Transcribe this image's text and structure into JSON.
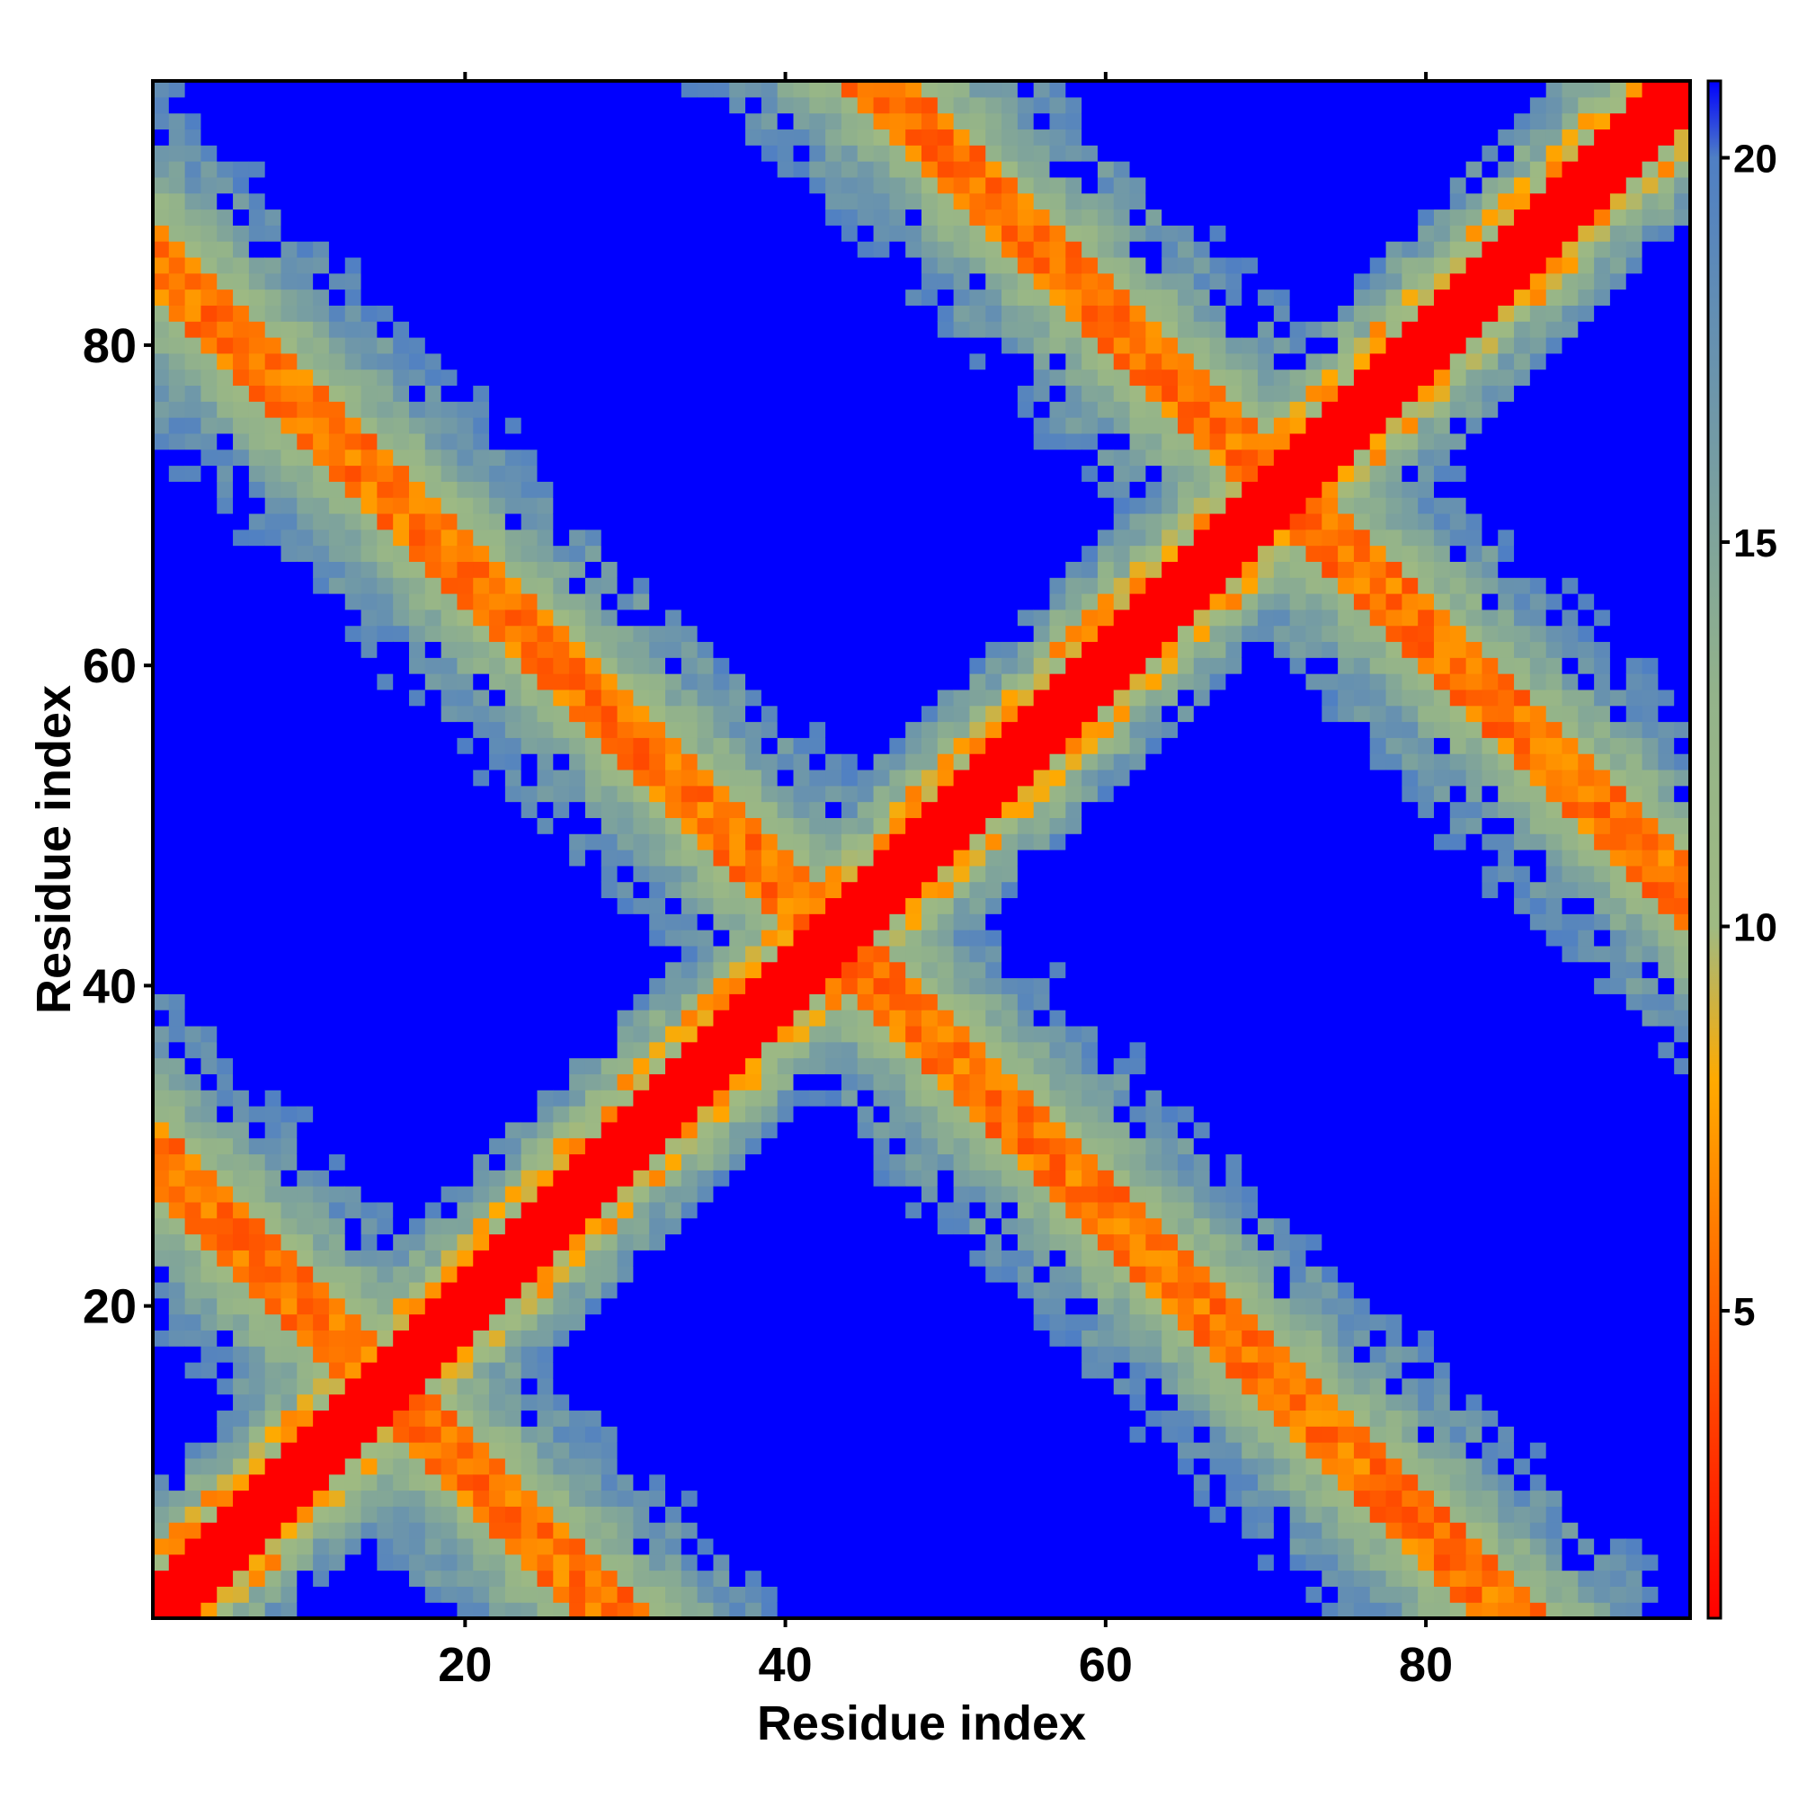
{
  "chart_data": {
    "type": "heatmap",
    "title": "",
    "xlabel": "Residue index",
    "ylabel": "Residue index",
    "x_range": [
      1,
      96
    ],
    "y_range": [
      1,
      96
    ],
    "x_ticks": [
      20,
      40,
      60,
      80
    ],
    "y_ticks": [
      20,
      40,
      60,
      80
    ],
    "colorbar": {
      "range": [
        1,
        21
      ],
      "ticks": [
        5,
        10,
        15,
        20
      ],
      "stops": [
        {
          "value": 1,
          "color": "#ff0000"
        },
        {
          "value": 8,
          "color": "#ffaa00"
        },
        {
          "value": 10,
          "color": "#9fba82"
        },
        {
          "value": 13,
          "color": "#93b38a"
        },
        {
          "value": 20,
          "color": "#4f7fc4"
        },
        {
          "value": 21,
          "color": "#0000ff"
        }
      ],
      "saturation_color": "#0000ff",
      "saturation_threshold": 20
    },
    "grid": false,
    "legend": "colorbar-right",
    "pattern": {
      "description_values": "distance map; main diagonal band value ~1; anti-diagonal and off-diagonal contact bands ~4-9; background saturated ~21",
      "diagonal_value": 1,
      "contact_band_centers": [
        {
          "residue_i": 1,
          "residue_j": 29
        },
        {
          "residue_i": 29,
          "residue_j": 57
        },
        {
          "residue_i": 57,
          "residue_j": 85
        }
      ]
    }
  }
}
